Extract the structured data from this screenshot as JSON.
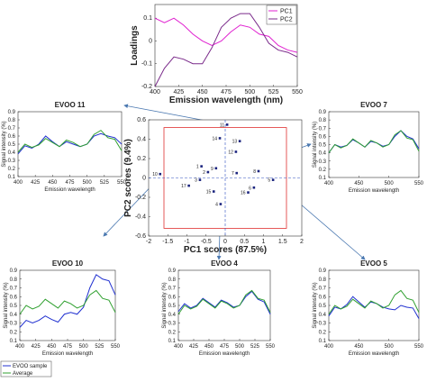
{
  "chart_data": [
    {
      "type": "line",
      "ylabel": "Loadings",
      "xlabel": "Emission wavelength (nm)",
      "x": [
        400,
        410,
        420,
        430,
        440,
        450,
        460,
        470,
        480,
        490,
        500,
        510,
        520,
        530,
        540,
        550
      ],
      "series": [
        {
          "name": "PC1",
          "color": "#e020d0",
          "values": [
            0.1,
            0.08,
            0.1,
            0.07,
            0.03,
            0.0,
            -0.02,
            0.0,
            0.04,
            0.07,
            0.06,
            0.03,
            0.02,
            -0.02,
            -0.04,
            -0.05
          ]
        },
        {
          "name": "PC2",
          "color": "#7a2a8a",
          "values": [
            -0.2,
            -0.12,
            -0.07,
            -0.08,
            -0.1,
            -0.1,
            -0.03,
            0.06,
            0.1,
            0.12,
            0.12,
            0.06,
            -0.01,
            -0.04,
            -0.05,
            -0.07
          ]
        }
      ],
      "xlim": [
        400,
        550
      ],
      "xticks": [
        400,
        425,
        450,
        475,
        500,
        525,
        550
      ],
      "ylim": [
        -0.2,
        0.16
      ],
      "yticks": [
        -0.2,
        -0.1,
        0,
        0.1
      ],
      "legend": "upper right"
    },
    {
      "type": "scatter",
      "xlabel": "PC1 scores (87.5%)",
      "ylabel": "PC2 scores (9.4%)",
      "x": [
        -0.62,
        -0.45,
        -0.66,
        -0.12,
        1.25,
        0.75,
        0.3,
        0.87,
        -0.24,
        -1.7,
        0.05,
        0.28,
        0.38,
        -0.14,
        -0.3,
        0.6,
        -0.95
      ],
      "y": [
        0.12,
        0.06,
        -0.02,
        -0.27,
        -0.02,
        -0.1,
        0.05,
        0.07,
        0.1,
        0.04,
        0.55,
        0.27,
        0.38,
        0.41,
        -0.14,
        -0.15,
        -0.08
      ],
      "labels": [
        "1",
        "2",
        "3",
        "4",
        "5",
        "6",
        "7",
        "8",
        "9",
        "10",
        "11",
        "12",
        "13",
        "14",
        "15",
        "16",
        "17"
      ],
      "color": "#1a237e",
      "limits": {
        "x": [
          -1.6,
          1.6
        ],
        "y": [
          -0.52,
          0.52
        ],
        "color": "#e03030"
      },
      "xlim": [
        -2,
        2
      ],
      "xticks": [
        -2,
        -1.5,
        -1,
        -0.5,
        0,
        0.5,
        1,
        1.5,
        2
      ],
      "ylim": [
        -0.6,
        0.6
      ],
      "yticks": [
        -0.6,
        -0.4,
        -0.2,
        0,
        0.2,
        0.4,
        0.6
      ]
    },
    {
      "type": "line",
      "title": "EVOO 11",
      "xlabel": "Emission wavelength",
      "ylabel": "Signal intensity (%)",
      "x": [
        400,
        410,
        420,
        430,
        440,
        450,
        460,
        470,
        480,
        490,
        500,
        510,
        520,
        530,
        540,
        550
      ],
      "series": [
        {
          "name": "EVOO sample",
          "color": "#2030d0",
          "values": [
            0.38,
            0.48,
            0.45,
            0.5,
            0.6,
            0.53,
            0.47,
            0.53,
            0.5,
            0.47,
            0.5,
            0.6,
            0.63,
            0.6,
            0.58,
            0.5
          ]
        },
        {
          "name": "Average",
          "color": "#30a030",
          "values": [
            0.4,
            0.5,
            0.46,
            0.49,
            0.57,
            0.52,
            0.47,
            0.55,
            0.52,
            0.47,
            0.5,
            0.62,
            0.67,
            0.58,
            0.56,
            0.42
          ]
        }
      ],
      "xlim": [
        400,
        550
      ],
      "xticks": [
        400,
        425,
        450,
        475,
        500,
        525,
        550
      ],
      "ylim": [
        0.1,
        0.9
      ],
      "yticks": [
        0.1,
        0.2,
        0.3,
        0.4,
        0.5,
        0.6,
        0.7,
        0.8,
        0.9
      ]
    },
    {
      "type": "line",
      "title": "EVOO 7",
      "xlabel": "Emission wavelength",
      "ylabel": "Signal intensity (%)",
      "x": [
        400,
        410,
        420,
        430,
        440,
        450,
        460,
        470,
        480,
        490,
        500,
        510,
        520,
        530,
        540,
        550
      ],
      "series": [
        {
          "name": "EVOO sample",
          "color": "#2030d0",
          "values": [
            0.4,
            0.5,
            0.47,
            0.49,
            0.56,
            0.52,
            0.47,
            0.54,
            0.52,
            0.48,
            0.5,
            0.6,
            0.67,
            0.6,
            0.57,
            0.45
          ]
        },
        {
          "name": "Average",
          "color": "#30a030",
          "values": [
            0.4,
            0.5,
            0.46,
            0.49,
            0.57,
            0.52,
            0.47,
            0.55,
            0.52,
            0.47,
            0.5,
            0.62,
            0.67,
            0.58,
            0.56,
            0.42
          ]
        }
      ],
      "xlim": [
        400,
        550
      ],
      "xticks": [
        400,
        450,
        500,
        550
      ],
      "ylim": [
        0.1,
        0.9
      ],
      "yticks": [
        0.1,
        0.2,
        0.3,
        0.4,
        0.5,
        0.6,
        0.7,
        0.8,
        0.9
      ]
    },
    {
      "type": "line",
      "title": "EVOO 10",
      "xlabel": "Emission wavelength",
      "ylabel": "Signal intensity (%)",
      "x": [
        400,
        410,
        420,
        430,
        440,
        450,
        460,
        470,
        480,
        490,
        500,
        510,
        520,
        530,
        540,
        550
      ],
      "series": [
        {
          "name": "EVOO sample",
          "color": "#2030d0",
          "values": [
            0.25,
            0.33,
            0.3,
            0.33,
            0.38,
            0.34,
            0.31,
            0.4,
            0.42,
            0.4,
            0.48,
            0.7,
            0.85,
            0.8,
            0.78,
            0.62
          ]
        },
        {
          "name": "Average",
          "color": "#30a030",
          "values": [
            0.4,
            0.5,
            0.46,
            0.49,
            0.57,
            0.52,
            0.47,
            0.55,
            0.52,
            0.47,
            0.5,
            0.62,
            0.67,
            0.58,
            0.56,
            0.42
          ]
        }
      ],
      "xlim": [
        400,
        550
      ],
      "xticks": [
        400,
        425,
        450,
        475,
        500,
        525,
        550
      ],
      "ylim": [
        0.1,
        0.9
      ],
      "yticks": [
        0.1,
        0.2,
        0.3,
        0.4,
        0.5,
        0.6,
        0.7,
        0.8,
        0.9
      ]
    },
    {
      "type": "line",
      "title": "EVOO 4",
      "xlabel": "Emission wavelength",
      "ylabel": "Signal intensity (%)",
      "x": [
        400,
        410,
        420,
        430,
        440,
        450,
        460,
        470,
        480,
        490,
        500,
        510,
        520,
        530,
        540,
        550
      ],
      "series": [
        {
          "name": "EVOO sample",
          "color": "#2030d0",
          "values": [
            0.43,
            0.52,
            0.47,
            0.5,
            0.58,
            0.53,
            0.48,
            0.56,
            0.53,
            0.48,
            0.5,
            0.6,
            0.66,
            0.57,
            0.54,
            0.4
          ]
        },
        {
          "name": "Average",
          "color": "#30a030",
          "values": [
            0.4,
            0.5,
            0.46,
            0.49,
            0.57,
            0.52,
            0.47,
            0.55,
            0.52,
            0.47,
            0.5,
            0.62,
            0.67,
            0.58,
            0.56,
            0.42
          ]
        }
      ],
      "xlim": [
        400,
        550
      ],
      "xticks": [
        400,
        425,
        450,
        475,
        500,
        525,
        550
      ],
      "ylim": [
        0.1,
        0.9
      ],
      "yticks": [
        0.1,
        0.2,
        0.3,
        0.4,
        0.5,
        0.6,
        0.7,
        0.8,
        0.9
      ]
    },
    {
      "type": "line",
      "title": "EVOO 5",
      "xlabel": "Emission wavelength",
      "ylabel": "Signal intensity (%)",
      "x": [
        400,
        410,
        420,
        430,
        440,
        450,
        460,
        470,
        480,
        490,
        500,
        510,
        520,
        530,
        540,
        550
      ],
      "series": [
        {
          "name": "EVOO sample",
          "color": "#2030d0",
          "values": [
            0.38,
            0.48,
            0.46,
            0.51,
            0.6,
            0.54,
            0.48,
            0.54,
            0.52,
            0.48,
            0.46,
            0.45,
            0.5,
            0.48,
            0.47,
            0.35
          ]
        },
        {
          "name": "Average",
          "color": "#30a030",
          "values": [
            0.4,
            0.5,
            0.46,
            0.49,
            0.57,
            0.52,
            0.47,
            0.55,
            0.52,
            0.47,
            0.5,
            0.62,
            0.67,
            0.58,
            0.56,
            0.42
          ]
        }
      ],
      "xlim": [
        400,
        550
      ],
      "xticks": [
        400,
        450,
        500,
        550
      ],
      "ylim": [
        0.1,
        0.9
      ],
      "yticks": [
        0.1,
        0.2,
        0.3,
        0.4,
        0.5,
        0.6,
        0.7,
        0.8,
        0.9
      ]
    }
  ]
}
